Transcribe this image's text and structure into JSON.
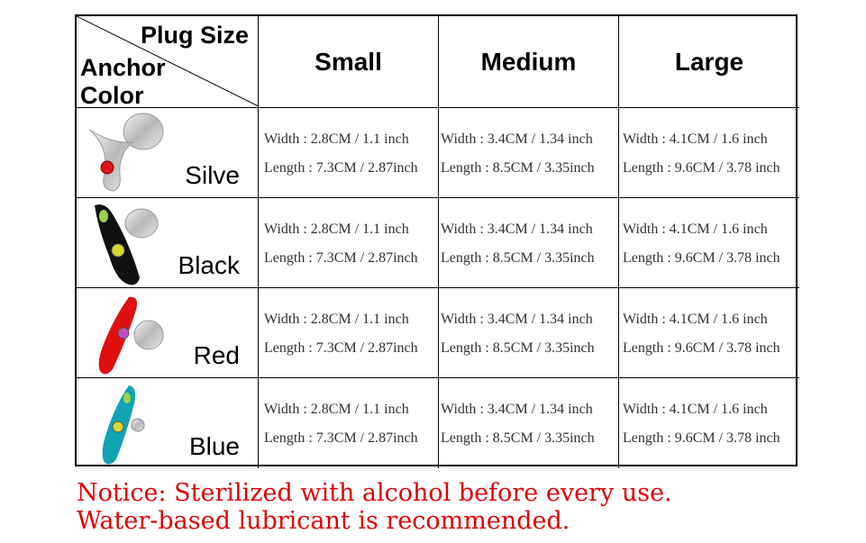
{
  "header": {
    "corner_top": "Plug Size",
    "corner_bottom": "Anchor Color",
    "sizes": [
      "Small",
      "Medium",
      "Large"
    ]
  },
  "rows": [
    {
      "color": "Silve",
      "swatch": "#c9c9c9",
      "cells": [
        {
          "width": "Width : 2.8CM / 1.1 inch",
          "length": "Length : 7.3CM / 2.87inch"
        },
        {
          "width": "Width : 3.4CM / 1.34 inch",
          "length": "Length : 8.5CM / 3.35inch"
        },
        {
          "width": "Width : 4.1CM / 1.6 inch",
          "length": "Length : 9.6CM / 3.78 inch"
        }
      ]
    },
    {
      "color": "Black",
      "swatch": "#111111",
      "cells": [
        {
          "width": "Width : 2.8CM / 1.1 inch",
          "length": "Length : 7.3CM / 2.87inch"
        },
        {
          "width": "Width : 3.4CM / 1.34 inch",
          "length": "Length : 8.5CM / 3.35inch"
        },
        {
          "width": "Width : 4.1CM / 1.6 inch",
          "length": "Length : 9.6CM / 3.78 inch"
        }
      ]
    },
    {
      "color": "Red",
      "swatch": "#e01010",
      "cells": [
        {
          "width": "Width : 2.8CM / 1.1 inch",
          "length": "Length : 7.3CM / 2.87inch"
        },
        {
          "width": "Width : 3.4CM / 1.34 inch",
          "length": "Length : 8.5CM / 3.35inch"
        },
        {
          "width": "Width : 4.1CM / 1.6 inch",
          "length": "Length : 9.6CM / 3.78 inch"
        }
      ]
    },
    {
      "color": "Blue",
      "swatch": "#12a3b5",
      "cells": [
        {
          "width": "Width : 2.8CM / 1.1 inch",
          "length": "Length : 7.3CM / 2.87inch"
        },
        {
          "width": "Width : 3.4CM / 1.34 inch",
          "length": "Length : 8.5CM / 3.35inch"
        },
        {
          "width": "Width : 4.1CM / 1.6 inch",
          "length": "Length : 9.6CM / 3.78 inch"
        }
      ]
    }
  ],
  "notice": {
    "line1": "Notice: Sterilized with alcohol before every use.",
    "line2": "Water-based lubricant is recommended.",
    "color": "#e00000"
  }
}
